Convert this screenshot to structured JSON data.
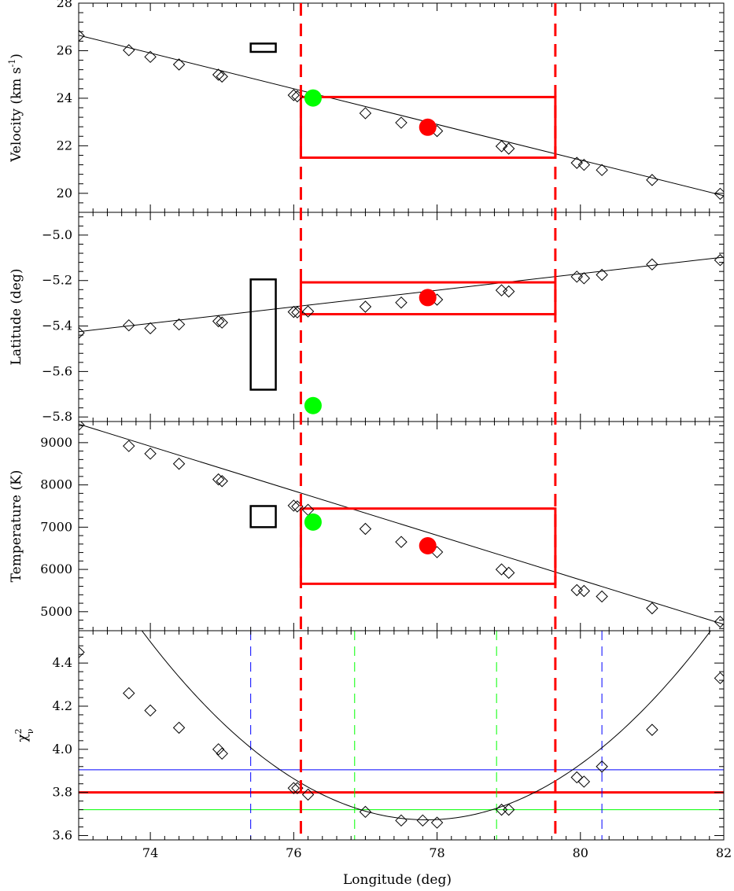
{
  "chart_data": {
    "type": "scatter",
    "xlabel": "Longitude (deg)",
    "xlim": [
      73,
      82
    ],
    "xticks": [
      74,
      76,
      78,
      80,
      82
    ],
    "xtick_labels": [
      "74",
      "76",
      "78",
      "80",
      "82"
    ],
    "colors": {
      "red": "#ff0000",
      "green": "#00ff00",
      "blue": "#0000ff",
      "black": "#000000"
    },
    "shared_vlines": [
      76.1,
      79.65
    ],
    "panels": [
      {
        "name": "velocity",
        "ylabel": "Velocity (km s",
        "ylabel_sup": "-1",
        "ylabel_tail": ")",
        "ylim": [
          19.2,
          28
        ],
        "yticks": [
          20,
          22,
          24,
          26,
          28
        ],
        "ytick_labels": [
          "20",
          "22",
          "24",
          "26",
          "28"
        ],
        "points_x": [
          73.0,
          73.7,
          74.0,
          74.4,
          74.95,
          75.0,
          76.0,
          76.05,
          77.0,
          77.5,
          78.0,
          78.9,
          79.0,
          79.95,
          80.05,
          80.3,
          81.0,
          81.95
        ],
        "points_y": [
          26.63,
          26.02,
          25.74,
          25.42,
          24.99,
          24.91,
          24.13,
          24.08,
          23.37,
          22.97,
          22.62,
          21.98,
          21.88,
          21.28,
          21.2,
          20.98,
          20.56,
          19.98
        ],
        "line": [
          [
            73,
            26.65
          ],
          [
            82,
            19.9
          ]
        ],
        "box": {
          "x": [
            76.1,
            79.65
          ],
          "y": [
            21.5,
            24.05
          ]
        },
        "red_point": [
          77.87,
          22.78
        ],
        "green_point": [
          76.27,
          24.01
        ],
        "black_box": {
          "x": [
            75.4,
            75.75
          ],
          "y": [
            25.95,
            26.3
          ]
        }
      },
      {
        "name": "latitude",
        "ylabel": "Latitude (deg)",
        "ylim": [
          -5.82,
          -4.9
        ],
        "yticks": [
          -5.8,
          -5.6,
          -5.4,
          -5.2,
          -5.0
        ],
        "ytick_labels": [
          "−5.8",
          "−5.6",
          "−5.4",
          "−5.2",
          "−5.0"
        ],
        "points_x": [
          73.0,
          73.7,
          74.0,
          74.4,
          74.95,
          75.0,
          76.0,
          76.05,
          76.2,
          77.0,
          77.5,
          78.0,
          78.9,
          79.0,
          79.95,
          80.05,
          80.3,
          81.0,
          81.95
        ],
        "points_y": [
          -5.43,
          -5.397,
          -5.41,
          -5.393,
          -5.379,
          -5.385,
          -5.338,
          -5.34,
          -5.336,
          -5.315,
          -5.297,
          -5.284,
          -5.243,
          -5.248,
          -5.183,
          -5.19,
          -5.175,
          -5.129,
          -5.11
        ],
        "line": [
          [
            73,
            -5.425
          ],
          [
            82,
            -5.097
          ]
        ],
        "box": {
          "x": [
            76.1,
            79.65
          ],
          "y": [
            -5.348,
            -5.208
          ]
        },
        "red_point": [
          77.87,
          -5.275
        ],
        "green_point": [
          76.27,
          -5.75
        ],
        "black_box": {
          "x": [
            75.4,
            75.75
          ],
          "y": [
            -5.68,
            -5.195
          ]
        }
      },
      {
        "name": "temperature",
        "ylabel": "Temperature (K)",
        "ylim": [
          4550,
          9500
        ],
        "yticks": [
          5000,
          6000,
          7000,
          8000,
          9000
        ],
        "ytick_labels": [
          "5000",
          "6000",
          "7000",
          "8000",
          "9000"
        ],
        "points_x": [
          73.0,
          73.7,
          74.0,
          74.4,
          74.95,
          75.0,
          76.0,
          76.05,
          76.2,
          77.0,
          77.5,
          78.0,
          78.9,
          79.0,
          79.95,
          80.05,
          80.3,
          81.0,
          81.95
        ],
        "points_y": [
          9420,
          8920,
          8740,
          8500,
          8130,
          8090,
          7510,
          7490,
          7410,
          6960,
          6650,
          6410,
          6000,
          5920,
          5510,
          5490,
          5360,
          5080,
          4760
        ],
        "line": [
          [
            73,
            9440
          ],
          [
            82,
            4700
          ]
        ],
        "box": {
          "x": [
            76.1,
            79.65
          ],
          "y": [
            5660,
            7440
          ]
        },
        "red_point": [
          77.87,
          6560
        ],
        "green_point": [
          76.27,
          7120
        ],
        "black_box": {
          "x": [
            75.4,
            75.75
          ],
          "y": [
            7000,
            7500
          ]
        }
      },
      {
        "name": "chi2",
        "ylabel": "χ",
        "ylabel_sup": "2",
        "ylabel_sub": "ν",
        "ylim": [
          3.58,
          4.55
        ],
        "yticks": [
          3.6,
          3.8,
          4.0,
          4.2,
          4.4
        ],
        "ytick_labels": [
          "3.6",
          "3.8",
          "4.0",
          "4.2",
          "4.4"
        ],
        "points_x": [
          73.0,
          73.7,
          74.0,
          74.4,
          74.95,
          75.0,
          76.0,
          76.05,
          76.2,
          77.0,
          77.5,
          77.8,
          78.0,
          78.9,
          79.0,
          79.95,
          80.05,
          80.3,
          81.0,
          81.95
        ],
        "points_y": [
          4.45,
          4.26,
          4.18,
          4.1,
          4.0,
          3.98,
          3.82,
          3.82,
          3.79,
          3.71,
          3.67,
          3.67,
          3.66,
          3.72,
          3.72,
          3.87,
          3.85,
          3.92,
          4.09,
          4.33
        ],
        "curve": {
          "vertex_x": 77.85,
          "vertex_y": 3.673,
          "a": 0.0557
        },
        "hlines": [
          {
            "y": 3.905,
            "color": "blue",
            "width": 1
          },
          {
            "y": 3.8,
            "color": "red",
            "width": 3
          },
          {
            "y": 3.72,
            "color": "green",
            "width": 1
          }
        ],
        "vlines": [
          {
            "x": 75.4,
            "color": "blue"
          },
          {
            "x": 80.3,
            "color": "blue"
          },
          {
            "x": 76.85,
            "color": "green"
          },
          {
            "x": 78.83,
            "color": "green"
          }
        ]
      }
    ]
  }
}
